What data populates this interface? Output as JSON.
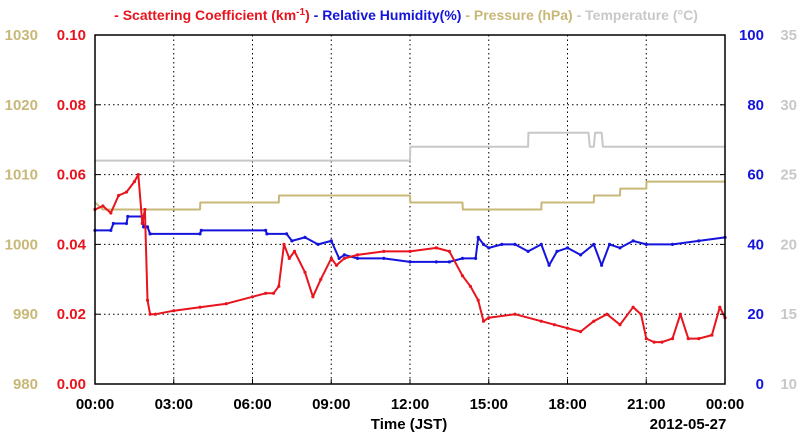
{
  "chart_data": {
    "type": "line",
    "xlabel": "Time (JST)",
    "date_label": "2012-05-27",
    "x_ticks": [
      "00:00",
      "03:00",
      "06:00",
      "09:00",
      "12:00",
      "15:00",
      "18:00",
      "21:00",
      "00:00"
    ],
    "x_range_hours": [
      0,
      24
    ],
    "grid": true,
    "legend_position": "top",
    "legend": [
      {
        "text": "- Scattering Coefficient (km",
        "sup": "-1",
        "tail": ")",
        "color": "#e8141e"
      },
      {
        "text": "- Relative Humidity(%)",
        "color": "#1414dc"
      },
      {
        "text": "- Pressure (hPa)",
        "color": "#c8b878"
      },
      {
        "text": "- Temperature (°C)",
        "color": "#c8c8c8"
      }
    ],
    "axes": {
      "scattering": {
        "side": "left-inner",
        "range": [
          0,
          0.1
        ],
        "ticks": [
          "0.00",
          "0.02",
          "0.04",
          "0.06",
          "0.08",
          "0.10"
        ],
        "color": "#e8141e"
      },
      "pressure": {
        "side": "left-outer",
        "range": [
          980,
          1030
        ],
        "ticks": [
          "980",
          "990",
          "1000",
          "1010",
          "1020",
          "1030"
        ],
        "color": "#c8b878"
      },
      "humidity": {
        "side": "right-inner",
        "range": [
          0,
          100
        ],
        "ticks": [
          "0",
          "20",
          "40",
          "60",
          "80",
          "100"
        ],
        "color": "#1414dc"
      },
      "temperature": {
        "side": "right-outer",
        "range": [
          10,
          35
        ],
        "ticks": [
          "10",
          "15",
          "20",
          "25",
          "30",
          "35"
        ],
        "color": "#c8c8c8"
      }
    },
    "series": [
      {
        "name": "Scattering Coefficient",
        "axis": "scattering",
        "color": "#e8141e",
        "x": [
          0,
          0.3,
          0.6,
          0.9,
          1.2,
          1.5,
          1.65,
          1.8,
          1.9,
          2.0,
          2.1,
          2.3,
          3.0,
          4.0,
          5.0,
          6.0,
          6.5,
          6.8,
          7.0,
          7.2,
          7.4,
          7.6,
          8.0,
          8.3,
          8.6,
          9.0,
          9.2,
          9.5,
          10.0,
          11.0,
          12.0,
          13.0,
          13.5,
          14.0,
          14.3,
          14.6,
          14.8,
          15.0,
          16.0,
          17.0,
          17.5,
          18.0,
          18.5,
          19.0,
          19.5,
          20.0,
          20.5,
          20.8,
          21.0,
          21.3,
          21.6,
          22.0,
          22.3,
          22.6,
          23.0,
          23.5,
          23.8,
          24.0
        ],
        "values": [
          0.05,
          0.051,
          0.049,
          0.054,
          0.055,
          0.058,
          0.06,
          0.046,
          0.05,
          0.024,
          0.02,
          0.02,
          0.021,
          0.022,
          0.023,
          0.025,
          0.026,
          0.026,
          0.028,
          0.04,
          0.036,
          0.038,
          0.032,
          0.025,
          0.03,
          0.036,
          0.034,
          0.036,
          0.037,
          0.038,
          0.038,
          0.039,
          0.038,
          0.031,
          0.028,
          0.024,
          0.018,
          0.019,
          0.02,
          0.018,
          0.017,
          0.016,
          0.015,
          0.018,
          0.02,
          0.017,
          0.022,
          0.02,
          0.013,
          0.012,
          0.012,
          0.013,
          0.02,
          0.013,
          0.013,
          0.014,
          0.022,
          0.019
        ]
      },
      {
        "name": "Relative Humidity",
        "axis": "humidity",
        "color": "#1414dc",
        "x": [
          0,
          0.6,
          0.7,
          1.2,
          1.25,
          1.8,
          1.85,
          2.0,
          2.1,
          4.0,
          4.05,
          6.5,
          6.55,
          7.3,
          7.5,
          8.0,
          8.5,
          9.0,
          9.3,
          9.5,
          10.0,
          11.0,
          12.0,
          13.0,
          13.5,
          14.0,
          14.5,
          14.6,
          14.8,
          15.0,
          15.5,
          16.0,
          16.5,
          17.0,
          17.3,
          17.6,
          18.0,
          18.5,
          19.0,
          19.3,
          19.6,
          20.0,
          20.5,
          21.0,
          22.0,
          23.0,
          24.0
        ],
        "values": [
          44,
          44,
          46,
          46,
          48,
          48,
          45,
          45,
          43,
          43,
          44,
          44,
          43,
          43,
          41,
          42,
          40,
          41,
          36,
          37,
          36,
          36,
          35,
          35,
          35,
          36,
          36,
          42,
          40,
          39,
          40,
          40,
          38,
          40,
          34,
          38,
          39,
          37,
          40,
          34,
          40,
          39,
          41,
          40,
          40,
          41,
          42
        ]
      },
      {
        "name": "Pressure",
        "axis": "pressure",
        "color": "#c8b878",
        "x": [
          0,
          0.3,
          0.6,
          1.0,
          4.0,
          4.01,
          7.0,
          7.01,
          12.0,
          12.01,
          14.0,
          14.01,
          17.0,
          17.01,
          19.0,
          19.01,
          20.0,
          20.01,
          21.0,
          21.01,
          24.0
        ],
        "values": [
          1006,
          1005,
          1005,
          1005,
          1005,
          1006,
          1006,
          1007,
          1007,
          1006,
          1006,
          1005,
          1005,
          1006,
          1006,
          1007,
          1007,
          1008,
          1008,
          1009,
          1009
        ]
      },
      {
        "name": "Temperature",
        "axis": "temperature",
        "color": "#c8c8c8",
        "x": [
          0,
          12.0,
          12.01,
          16.5,
          16.51,
          18.8,
          18.85,
          19.0,
          19.05,
          19.3,
          19.35,
          24.0
        ],
        "values": [
          26,
          26,
          27,
          27,
          28,
          28,
          27,
          27,
          28,
          28,
          27,
          27
        ]
      }
    ]
  }
}
